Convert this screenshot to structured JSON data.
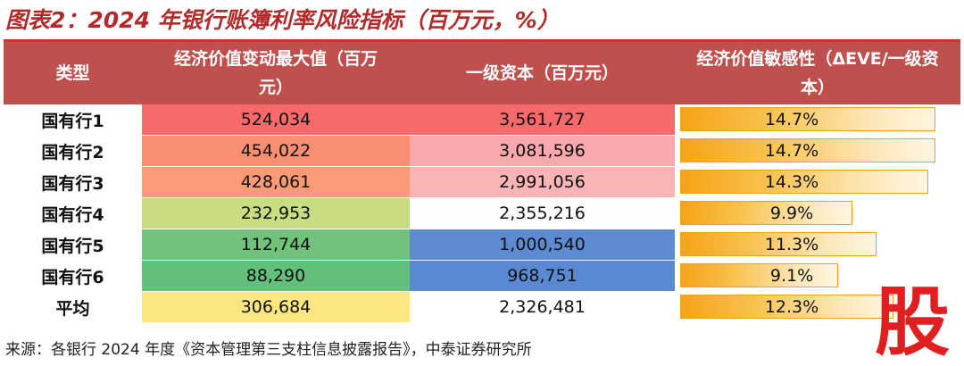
{
  "title": "图表2：2024 年银行账簿利率风险指标（百万元，%）",
  "headers": {
    "type": "类型",
    "economic_value_change": "经济价值变动最大值（百万元）",
    "tier1_capital": "一级资本（百万元）",
    "sensitivity": "经济价值敏感性（ΔEVE/一级资本）"
  },
  "rows": [
    {
      "label": "国有行1",
      "eve": "524,034",
      "capital": "3,561,727",
      "ratio": "14.7%",
      "ratio_value": 14.7,
      "eve_color": "#f8696b",
      "cap_color": "#f8696b"
    },
    {
      "label": "国有行2",
      "eve": "454,022",
      "capital": "3,081,596",
      "ratio": "14.7%",
      "ratio_value": 14.7,
      "eve_color": "#fa8e72",
      "cap_color": "#faa8ad"
    },
    {
      "label": "国有行3",
      "eve": "428,061",
      "capital": "2,991,056",
      "ratio": "14.3%",
      "ratio_value": 14.3,
      "eve_color": "#fb9a74",
      "cap_color": "#fab4b6"
    },
    {
      "label": "国有行4",
      "eve": "232,953",
      "capital": "2,355,216",
      "ratio": "9.9%",
      "ratio_value": 9.9,
      "eve_color": "#c7dd80",
      "cap_color": "#fdfdff"
    },
    {
      "label": "国有行5",
      "eve": "112,744",
      "capital": "1,000,540",
      "ratio": "11.3%",
      "ratio_value": 11.3,
      "eve_color": "#71c27b",
      "cap_color": "#5d8ad0"
    },
    {
      "label": "国有行6",
      "eve": "88,290",
      "capital": "968,751",
      "ratio": "9.1%",
      "ratio_value": 9.1,
      "eve_color": "#64bf7a",
      "cap_color": "#5a89d1"
    },
    {
      "label": "平均",
      "eve": "306,684",
      "capital": "2,326,481",
      "ratio": "12.3%",
      "ratio_value": 12.3,
      "eve_color": "#fde67f",
      "cap_color": "#ffffff"
    }
  ],
  "source": "来源：各银行 2024 年度《资本管理第三支柱信息披露报告》，中泰证券研究所",
  "watermark": "股"
}
